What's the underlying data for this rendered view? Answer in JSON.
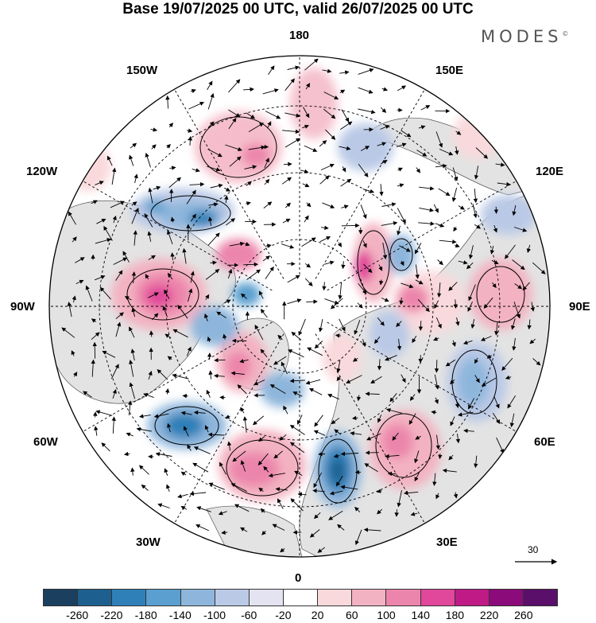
{
  "title": "Base 19/07/2025 00 UTC, valid 26/07/2025 00 UTC",
  "brand": "MODES",
  "brand_mark": "©",
  "colors": {
    "ocean": "#ffffff",
    "land": "#e3e3e3",
    "coast": "#555555",
    "grid": "#000000"
  },
  "longitude_labels": {
    "top": "180",
    "bottom": "0",
    "left": "90W",
    "right": "90E",
    "upper_left": "150W",
    "upper_right": "150E",
    "left_upper": "120W",
    "right_upper": "120E",
    "left_lower": "60W",
    "right_lower": "60E",
    "lower_left": "30W",
    "lower_right": "30E"
  },
  "reference_vector": {
    "label": "30"
  },
  "colorbar": {
    "ticks": [
      "-260",
      "-220",
      "-180",
      "-140",
      "-100",
      "-60",
      "-20",
      "20",
      "60",
      "100",
      "140",
      "180",
      "220",
      "260"
    ],
    "colors": [
      "#1b3f5e",
      "#1d5f8e",
      "#2f80b8",
      "#5a9fcf",
      "#8eb6dc",
      "#bac9e6",
      "#e4e3f1",
      "#ffffff",
      "#f9d9dc",
      "#f3b2c2",
      "#ec85ab",
      "#e1479a",
      "#c01a86",
      "#8c0b7a",
      "#5a0f6b"
    ]
  }
}
